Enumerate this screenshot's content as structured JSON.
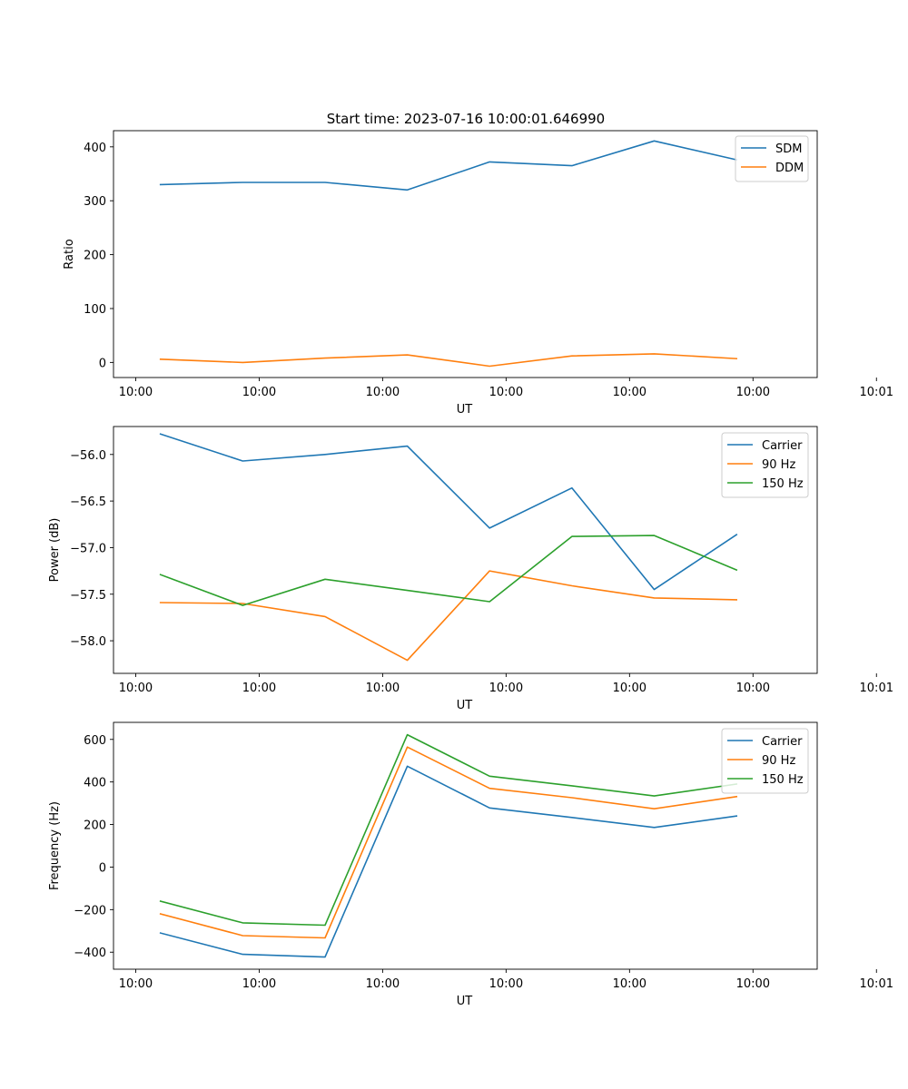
{
  "figure": {
    "title": "Start time: 2023-07-16 10:00:01.646990"
  },
  "chart_data": [
    {
      "type": "line",
      "title": "Start time: 2023-07-16 10:00:01.646990",
      "xlabel": "UT",
      "ylabel": "Ratio",
      "x": [
        1,
        2,
        3,
        4,
        5,
        6,
        7,
        8
      ],
      "xlim": [
        0.43,
        8.98
      ],
      "xticks": [
        0.7,
        2.2,
        3.7,
        5.2,
        6.7,
        8.2,
        9.7
      ],
      "xticklabels": [
        "10:00",
        "10:00",
        "10:00",
        "10:00",
        "10:00",
        "10:00",
        "10:01"
      ],
      "ylim": [
        -28,
        430
      ],
      "yticks": [
        0,
        100,
        200,
        300,
        400
      ],
      "yticklabels": [
        "0",
        "100",
        "200",
        "300",
        "400"
      ],
      "legend": "top-right",
      "series": [
        {
          "name": "SDM",
          "color": "#1f77b4",
          "values": [
            330,
            334,
            334,
            320,
            372,
            365,
            411,
            376
          ]
        },
        {
          "name": "DDM",
          "color": "#ff7f0e",
          "values": [
            6,
            0,
            8,
            14,
            -7,
            12,
            16,
            7
          ]
        }
      ]
    },
    {
      "type": "line",
      "xlabel": "UT",
      "ylabel": "Power (dB)",
      "x": [
        1,
        2,
        3,
        4,
        5,
        6,
        7,
        8
      ],
      "xlim": [
        0.43,
        8.98
      ],
      "xticks": [
        0.7,
        2.2,
        3.7,
        5.2,
        6.7,
        8.2,
        9.7
      ],
      "xticklabels": [
        "10:00",
        "10:00",
        "10:00",
        "10:00",
        "10:00",
        "10:00",
        "10:01"
      ],
      "ylim": [
        -58.35,
        -55.7
      ],
      "yticks": [
        -58.0,
        -57.5,
        -57.0,
        -56.5,
        -56.0
      ],
      "yticklabels": [
        "−58.0",
        "−57.5",
        "−57.0",
        "−56.5",
        "−56.0"
      ],
      "legend": "top-right",
      "series": [
        {
          "name": "Carrier",
          "color": "#1f77b4",
          "values": [
            -55.78,
            -56.07,
            -56.0,
            -55.91,
            -56.79,
            -56.36,
            -57.45,
            -56.86
          ]
        },
        {
          "name": "90 Hz",
          "color": "#ff7f0e",
          "values": [
            -57.59,
            -57.6,
            -57.74,
            -58.21,
            -57.25,
            -57.41,
            -57.54,
            -57.56
          ]
        },
        {
          "name": "150 Hz",
          "color": "#2ca02c",
          "values": [
            -57.29,
            -57.62,
            -57.34,
            -57.46,
            -57.58,
            -56.88,
            -56.87,
            -57.24
          ]
        }
      ]
    },
    {
      "type": "line",
      "xlabel": "UT",
      "ylabel": "Frequency (Hz)",
      "x": [
        1,
        2,
        3,
        4,
        5,
        6,
        7,
        8
      ],
      "xlim": [
        0.43,
        8.98
      ],
      "xticks": [
        0.7,
        2.2,
        3.7,
        5.2,
        6.7,
        8.2,
        9.7
      ],
      "xticklabels": [
        "10:00",
        "10:00",
        "10:00",
        "10:00",
        "10:00",
        "10:00",
        "10:01"
      ],
      "ylim": [
        -480,
        680
      ],
      "yticks": [
        -400,
        -200,
        0,
        200,
        400,
        600
      ],
      "yticklabels": [
        "−400",
        "−200",
        "0",
        "200",
        "400",
        "600"
      ],
      "legend": "top-right",
      "series": [
        {
          "name": "Carrier",
          "color": "#1f77b4",
          "values": [
            -310,
            -410,
            -423,
            474,
            278,
            233,
            186,
            240
          ]
        },
        {
          "name": "90 Hz",
          "color": "#ff7f0e",
          "values": [
            -220,
            -322,
            -333,
            564,
            370,
            326,
            274,
            331
          ]
        },
        {
          "name": "150 Hz",
          "color": "#2ca02c",
          "values": [
            -160,
            -262,
            -273,
            622,
            427,
            382,
            334,
            390
          ]
        }
      ]
    }
  ]
}
